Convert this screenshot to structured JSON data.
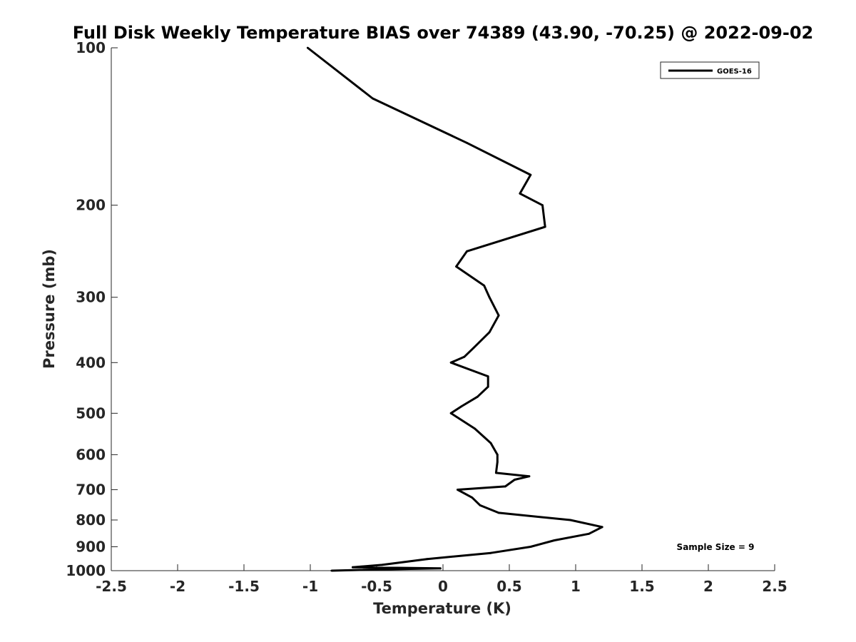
{
  "chart_data": {
    "type": "line",
    "title": "Full Disk Weekly Temperature BIAS over 74389 (43.90, -70.25) @ 2022-09-02",
    "xlabel": "Temperature (K)",
    "ylabel": "Pressure (mb)",
    "xlim": [
      -2.5,
      2.5
    ],
    "ylim": [
      100,
      1000
    ],
    "y_scale": "log",
    "y_reversed": true,
    "grid": false,
    "legend_position": "top-right",
    "x_ticks": [
      "-2.5",
      "-2",
      "-1.5",
      "-1",
      "-0.5",
      "0",
      "0.5",
      "1",
      "1.5",
      "2",
      "2.5"
    ],
    "y_ticks": [
      "100",
      "200",
      "300",
      "400",
      "500",
      "600",
      "700",
      "800",
      "900",
      "1000"
    ],
    "annotation": "Sample Size = 9",
    "series": [
      {
        "name": "GOES-16",
        "color": "#000000",
        "points": [
          {
            "x": -1.02,
            "y": 100
          },
          {
            "x": -0.53,
            "y": 125
          },
          {
            "x": 0.18,
            "y": 152
          },
          {
            "x": 0.66,
            "y": 175
          },
          {
            "x": 0.58,
            "y": 190
          },
          {
            "x": 0.75,
            "y": 200
          },
          {
            "x": 0.77,
            "y": 220
          },
          {
            "x": 0.18,
            "y": 245
          },
          {
            "x": 0.1,
            "y": 262
          },
          {
            "x": 0.31,
            "y": 285
          },
          {
            "x": 0.35,
            "y": 300
          },
          {
            "x": 0.42,
            "y": 325
          },
          {
            "x": 0.35,
            "y": 350
          },
          {
            "x": 0.23,
            "y": 375
          },
          {
            "x": 0.16,
            "y": 390
          },
          {
            "x": 0.06,
            "y": 400
          },
          {
            "x": 0.34,
            "y": 425
          },
          {
            "x": 0.34,
            "y": 445
          },
          {
            "x": 0.26,
            "y": 465
          },
          {
            "x": 0.14,
            "y": 485
          },
          {
            "x": 0.06,
            "y": 500
          },
          {
            "x": 0.24,
            "y": 535
          },
          {
            "x": 0.36,
            "y": 570
          },
          {
            "x": 0.41,
            "y": 600
          },
          {
            "x": 0.41,
            "y": 620
          },
          {
            "x": 0.4,
            "y": 650
          },
          {
            "x": 0.65,
            "y": 660
          },
          {
            "x": 0.54,
            "y": 670
          },
          {
            "x": 0.47,
            "y": 690
          },
          {
            "x": 0.11,
            "y": 700
          },
          {
            "x": 0.22,
            "y": 725
          },
          {
            "x": 0.28,
            "y": 750
          },
          {
            "x": 0.42,
            "y": 775
          },
          {
            "x": 0.96,
            "y": 800
          },
          {
            "x": 1.2,
            "y": 825
          },
          {
            "x": 1.1,
            "y": 850
          },
          {
            "x": 0.84,
            "y": 875
          },
          {
            "x": 0.66,
            "y": 900
          },
          {
            "x": 0.36,
            "y": 925
          },
          {
            "x": -0.12,
            "y": 950
          },
          {
            "x": -0.46,
            "y": 975
          },
          {
            "x": -0.68,
            "y": 985
          },
          {
            "x": -0.02,
            "y": 990
          },
          {
            "x": -0.5,
            "y": 995
          },
          {
            "x": -0.84,
            "y": 1000
          }
        ]
      }
    ]
  }
}
